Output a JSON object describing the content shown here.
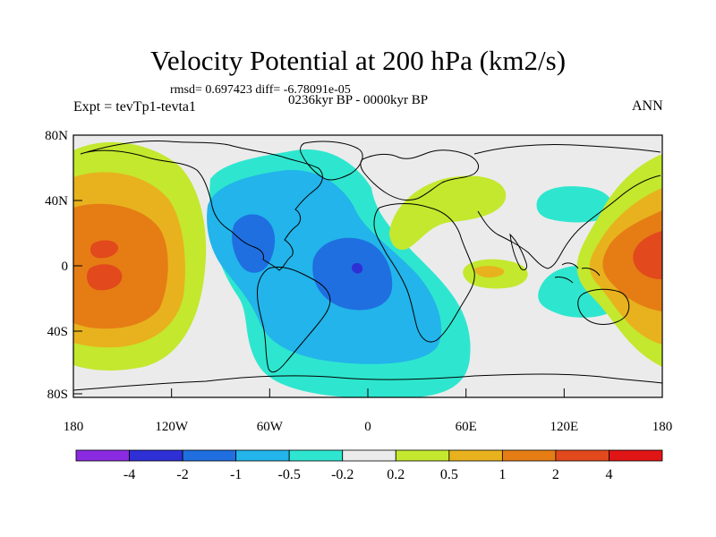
{
  "title": "Velocity Potential at 200 hPa (km2/s)",
  "stats": "rmsd= 0.697423 diff= -6.78091e-05",
  "experiment": "Expt = tevTp1-tevta1",
  "period": "0236kyr BP - 0000kyr BP",
  "season": "ANN",
  "axes": {
    "y_ticks": [
      "80N",
      "40N",
      "0",
      "40S",
      "80S"
    ],
    "x_ticks": [
      "180",
      "120W",
      "60W",
      "0",
      "60E",
      "120E",
      "180"
    ]
  },
  "colorbar": {
    "labels": [
      "-4",
      "-2",
      "-1",
      "-0.5",
      "-0.2",
      "0.2",
      "0.5",
      "1",
      "2",
      "4"
    ],
    "colors": [
      "#8a2be2",
      "#2f2fd6",
      "#1f6fe0",
      "#22b4ea",
      "#2ee6cf",
      "#ebebeb",
      "#c3e82e",
      "#e8b21e",
      "#e57d14",
      "#e2491c",
      "#e01515"
    ]
  },
  "map_colors": {
    "neutral": "#ebebeb",
    "pos_weak": "#c3e82e",
    "pos_mid": "#e8b21e",
    "pos_strong": "#e57d14",
    "pos_max": "#e2491c",
    "neg_weak": "#2ee6cf",
    "neg_mid": "#22b4ea",
    "neg_strong": "#1f6fe0",
    "neg_max": "#2f2fd6"
  }
}
